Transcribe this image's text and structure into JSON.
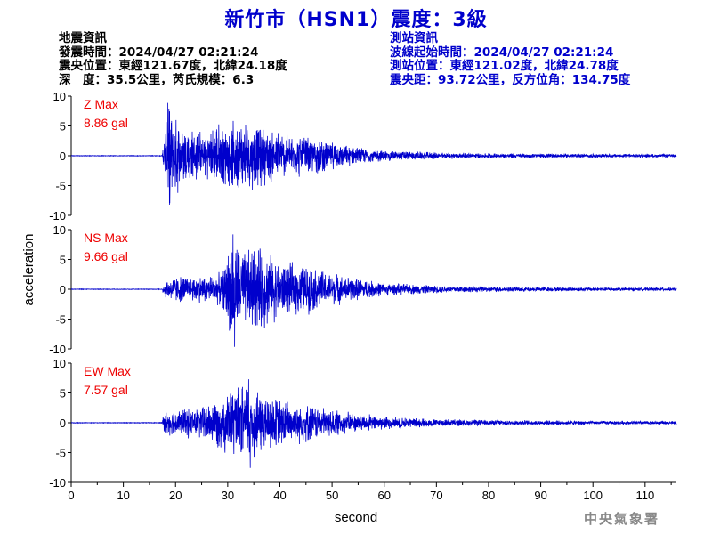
{
  "title": "新竹市（HSN1）震度：3級",
  "quake_info": {
    "heading": "地震資訊",
    "time": "發震時間：2024/04/27 02:21:24",
    "location": "震央位置：東經121.67度，北緯24.18度",
    "depth_magnitude": "深　度：35.5公里，芮氏規模：6.3"
  },
  "station_info": {
    "heading": "測站資訊",
    "wave_start": "波線起始時間：2024/04/27 02:21:24",
    "location": "測站位置：東經121.02度，北緯24.78度",
    "distance_azimuth": "震央距：93.72公里，反方位角：134.75度"
  },
  "credit": "中央氣象署",
  "chart_data": {
    "type": "line",
    "xlabel": "second",
    "ylabel": "acceleration",
    "xlim": [
      0,
      116
    ],
    "xticks": [
      0,
      10,
      20,
      30,
      40,
      50,
      60,
      70,
      80,
      90,
      100,
      110
    ],
    "ylim": [
      -10,
      10
    ],
    "yticks": [
      -10,
      -5,
      0,
      5,
      10
    ],
    "line_color": "#0000cc",
    "label_color": "#ee0000",
    "grid": false,
    "panels": [
      {
        "component": "Z Max",
        "max_label": "8.86 gal",
        "max": 8.86,
        "min": -8.2,
        "onset": 17.5,
        "envelope": [
          [
            0,
            0
          ],
          [
            17.4,
            0.2
          ],
          [
            17.8,
            3.5
          ],
          [
            18.5,
            8.86
          ],
          [
            20,
            7
          ],
          [
            23,
            5
          ],
          [
            26,
            4
          ],
          [
            28,
            6
          ],
          [
            30,
            5.5
          ],
          [
            32,
            6.5
          ],
          [
            35,
            6
          ],
          [
            38,
            5
          ],
          [
            42,
            4
          ],
          [
            46,
            3.5
          ],
          [
            50,
            2.5
          ],
          [
            55,
            1.5
          ],
          [
            60,
            1
          ],
          [
            70,
            0.6
          ],
          [
            80,
            0.45
          ],
          [
            100,
            0.35
          ],
          [
            116,
            0.3
          ]
        ]
      },
      {
        "component": "NS Max",
        "max_label": "9.66 gal",
        "max": 9.2,
        "min": -9.66,
        "onset": 17.5,
        "envelope": [
          [
            0,
            0
          ],
          [
            17.4,
            0.2
          ],
          [
            17.8,
            1.5
          ],
          [
            20,
            2.5
          ],
          [
            25,
            2.5
          ],
          [
            29,
            3
          ],
          [
            30,
            7
          ],
          [
            31,
            9.66
          ],
          [
            33,
            7
          ],
          [
            35,
            8
          ],
          [
            37,
            7.5
          ],
          [
            40,
            5
          ],
          [
            45,
            4.5
          ],
          [
            50,
            3
          ],
          [
            55,
            2
          ],
          [
            60,
            1.2
          ],
          [
            70,
            0.7
          ],
          [
            80,
            0.5
          ],
          [
            100,
            0.35
          ],
          [
            116,
            0.3
          ]
        ]
      },
      {
        "component": "EW Max",
        "max_label": "7.57 gal",
        "max": 7.3,
        "min": -7.57,
        "onset": 17.5,
        "envelope": [
          [
            0,
            0
          ],
          [
            17.4,
            0.2
          ],
          [
            17.8,
            2
          ],
          [
            20,
            2.5
          ],
          [
            25,
            3
          ],
          [
            28,
            4.5
          ],
          [
            30,
            6
          ],
          [
            32,
            6.5
          ],
          [
            34,
            7.57
          ],
          [
            37,
            5.5
          ],
          [
            40,
            4.5
          ],
          [
            45,
            3.5
          ],
          [
            50,
            2.5
          ],
          [
            55,
            1.7
          ],
          [
            60,
            1.2
          ],
          [
            70,
            0.7
          ],
          [
            80,
            0.5
          ],
          [
            100,
            0.35
          ],
          [
            116,
            0.3
          ]
        ]
      }
    ]
  }
}
